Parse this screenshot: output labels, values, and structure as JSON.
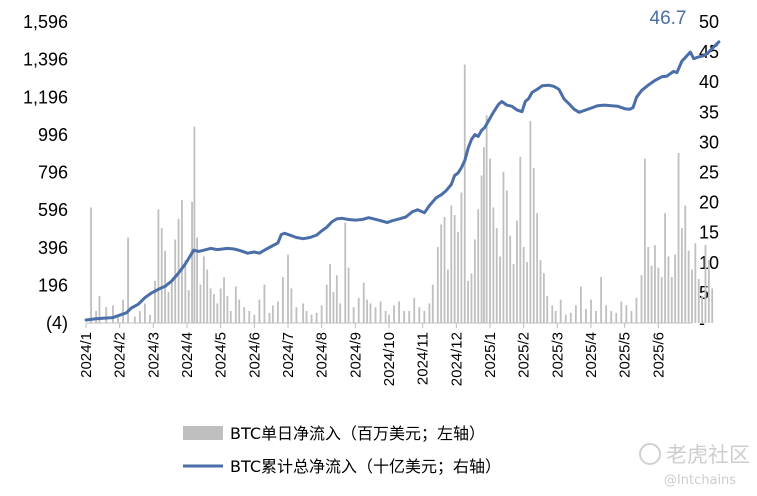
{
  "chart_data": {
    "type": "bar+line",
    "left_axis": {
      "ticks": [
        "(4)",
        "196",
        "396",
        "596",
        "796",
        "996",
        "1,196",
        "1,396",
        "1,596"
      ],
      "tick_values": [
        -4,
        196,
        396,
        596,
        796,
        996,
        1196,
        1396,
        1596
      ],
      "range": [
        -4,
        1596
      ],
      "negative_color": "#c00000"
    },
    "right_axis": {
      "ticks": [
        "-",
        "5",
        "10",
        "15",
        "20",
        "25",
        "30",
        "35",
        "40",
        "45",
        "50"
      ],
      "tick_values": [
        0,
        5,
        10,
        15,
        20,
        25,
        30,
        35,
        40,
        45,
        50
      ],
      "range": [
        0,
        50
      ]
    },
    "x_ticks": [
      "2024/1",
      "2024/2",
      "2024/3",
      "2024/4",
      "2024/5",
      "2024/6",
      "2024/7",
      "2024/8",
      "2024/9",
      "2024/10",
      "2024/11",
      "2024/12",
      "2025/1",
      "2025/2",
      "2025/3",
      "2025/4",
      "2025/5",
      "2025/6"
    ],
    "end_label": "46.7",
    "line_color": "#4a6ea8",
    "bar_color": "#bfbfbf",
    "series": [
      {
        "name": "BTC单日净流入（百万美元；左轴）",
        "type": "bar",
        "axis": "left",
        "points": [
          [
            0.15,
            610
          ],
          [
            0.3,
            60
          ],
          [
            0.4,
            140
          ],
          [
            0.6,
            80
          ],
          [
            0.8,
            90
          ],
          [
            0.95,
            40
          ],
          [
            1.1,
            120
          ],
          [
            1.25,
            450
          ],
          [
            1.45,
            30
          ],
          [
            1.6,
            60
          ],
          [
            1.75,
            100
          ],
          [
            1.9,
            40
          ],
          [
            2.05,
            220
          ],
          [
            2.15,
            600
          ],
          [
            2.25,
            500
          ],
          [
            2.35,
            380
          ],
          [
            2.45,
            160
          ],
          [
            2.55,
            210
          ],
          [
            2.65,
            440
          ],
          [
            2.75,
            550
          ],
          [
            2.85,
            650
          ],
          [
            2.95,
            330
          ],
          [
            3.05,
            170
          ],
          [
            3.15,
            640
          ],
          [
            3.22,
            1040
          ],
          [
            3.3,
            450
          ],
          [
            3.4,
            200
          ],
          [
            3.5,
            350
          ],
          [
            3.6,
            280
          ],
          [
            3.7,
            180
          ],
          [
            3.8,
            150
          ],
          [
            3.9,
            100
          ],
          [
            4.0,
            180
          ],
          [
            4.1,
            240
          ],
          [
            4.2,
            140
          ],
          [
            4.3,
            60
          ],
          [
            4.45,
            190
          ],
          [
            4.55,
            120
          ],
          [
            4.7,
            80
          ],
          [
            4.85,
            60
          ],
          [
            5.0,
            40
          ],
          [
            5.15,
            120
          ],
          [
            5.3,
            200
          ],
          [
            5.45,
            50
          ],
          [
            5.55,
            90
          ],
          [
            5.7,
            110
          ],
          [
            5.85,
            240
          ],
          [
            6.0,
            360
          ],
          [
            6.1,
            180
          ],
          [
            6.25,
            80
          ],
          [
            6.45,
            100
          ],
          [
            6.55,
            60
          ],
          [
            6.7,
            40
          ],
          [
            6.85,
            50
          ],
          [
            7.0,
            90
          ],
          [
            7.15,
            200
          ],
          [
            7.25,
            310
          ],
          [
            7.35,
            160
          ],
          [
            7.45,
            250
          ],
          [
            7.55,
            100
          ],
          [
            7.7,
            530
          ],
          [
            7.8,
            290
          ],
          [
            7.95,
            80
          ],
          [
            8.1,
            130
          ],
          [
            8.25,
            210
          ],
          [
            8.35,
            120
          ],
          [
            8.45,
            100
          ],
          [
            8.6,
            80
          ],
          [
            8.75,
            110
          ],
          [
            8.9,
            60
          ],
          [
            9.0,
            40
          ],
          [
            9.15,
            90
          ],
          [
            9.3,
            110
          ],
          [
            9.45,
            60
          ],
          [
            9.6,
            60
          ],
          [
            9.75,
            130
          ],
          [
            9.9,
            80
          ],
          [
            10.05,
            60
          ],
          [
            10.2,
            100
          ],
          [
            10.3,
            200
          ],
          [
            10.45,
            400
          ],
          [
            10.55,
            520
          ],
          [
            10.65,
            560
          ],
          [
            10.75,
            280
          ],
          [
            10.85,
            620
          ],
          [
            10.95,
            570
          ],
          [
            11.05,
            480
          ],
          [
            11.15,
            690
          ],
          [
            11.25,
            1370
          ],
          [
            11.35,
            220
          ],
          [
            11.45,
            260
          ],
          [
            11.55,
            440
          ],
          [
            11.65,
            600
          ],
          [
            11.75,
            780
          ],
          [
            11.82,
            930
          ],
          [
            11.9,
            1100
          ],
          [
            12.0,
            870
          ],
          [
            12.1,
            610
          ],
          [
            12.2,
            500
          ],
          [
            12.3,
            350
          ],
          [
            12.4,
            800
          ],
          [
            12.5,
            700
          ],
          [
            12.6,
            460
          ],
          [
            12.7,
            310
          ],
          [
            12.8,
            540
          ],
          [
            12.9,
            880
          ],
          [
            13.0,
            400
          ],
          [
            13.1,
            320
          ],
          [
            13.2,
            1070
          ],
          [
            13.3,
            820
          ],
          [
            13.4,
            580
          ],
          [
            13.5,
            330
          ],
          [
            13.6,
            260
          ],
          [
            13.7,
            140
          ],
          [
            13.85,
            90
          ],
          [
            13.95,
            60
          ],
          [
            14.1,
            120
          ],
          [
            14.25,
            40
          ],
          [
            14.4,
            50
          ],
          [
            14.55,
            90
          ],
          [
            14.7,
            190
          ],
          [
            14.85,
            70
          ],
          [
            15.0,
            120
          ],
          [
            15.15,
            60
          ],
          [
            15.3,
            240
          ],
          [
            15.45,
            90
          ],
          [
            15.6,
            60
          ],
          [
            15.75,
            50
          ],
          [
            15.9,
            110
          ],
          [
            16.05,
            90
          ],
          [
            16.2,
            60
          ],
          [
            16.35,
            130
          ],
          [
            16.5,
            250
          ],
          [
            16.6,
            870
          ],
          [
            16.7,
            400
          ],
          [
            16.8,
            300
          ],
          [
            16.9,
            410
          ],
          [
            17.0,
            290
          ],
          [
            17.1,
            240
          ],
          [
            17.2,
            580
          ],
          [
            17.3,
            350
          ],
          [
            17.4,
            240
          ],
          [
            17.5,
            360
          ],
          [
            17.6,
            900
          ],
          [
            17.7,
            500
          ],
          [
            17.8,
            620
          ],
          [
            17.9,
            380
          ],
          [
            18.0,
            280
          ],
          [
            18.1,
            420
          ],
          [
            18.2,
            230
          ],
          [
            18.3,
            140
          ],
          [
            18.4,
            410
          ],
          [
            18.5,
            330
          ],
          [
            18.6,
            180
          ]
        ]
      },
      {
        "name": "BTC累计总净流入（十亿美元；右轴）",
        "type": "line",
        "axis": "right",
        "points": [
          [
            0.0,
            0.5
          ],
          [
            0.3,
            0.7
          ],
          [
            0.5,
            0.8
          ],
          [
            0.8,
            0.9
          ],
          [
            1.0,
            1.3
          ],
          [
            1.2,
            1.7
          ],
          [
            1.35,
            2.5
          ],
          [
            1.55,
            3.1
          ],
          [
            1.75,
            4.2
          ],
          [
            1.95,
            5.0
          ],
          [
            2.15,
            5.6
          ],
          [
            2.35,
            6.1
          ],
          [
            2.55,
            7.0
          ],
          [
            2.75,
            8.3
          ],
          [
            2.95,
            9.8
          ],
          [
            3.1,
            11.2
          ],
          [
            3.2,
            12.1
          ],
          [
            3.35,
            11.9
          ],
          [
            3.5,
            12.1
          ],
          [
            3.7,
            12.4
          ],
          [
            3.9,
            12.2
          ],
          [
            4.05,
            12.3
          ],
          [
            4.2,
            12.4
          ],
          [
            4.4,
            12.3
          ],
          [
            4.6,
            12.0
          ],
          [
            4.8,
            11.6
          ],
          [
            5.0,
            11.8
          ],
          [
            5.15,
            11.6
          ],
          [
            5.3,
            12.1
          ],
          [
            5.5,
            12.7
          ],
          [
            5.7,
            13.3
          ],
          [
            5.8,
            14.7
          ],
          [
            5.9,
            14.9
          ],
          [
            6.05,
            14.6
          ],
          [
            6.25,
            14.2
          ],
          [
            6.45,
            14.0
          ],
          [
            6.65,
            14.2
          ],
          [
            6.85,
            14.6
          ],
          [
            7.0,
            15.3
          ],
          [
            7.15,
            15.9
          ],
          [
            7.3,
            16.8
          ],
          [
            7.45,
            17.3
          ],
          [
            7.6,
            17.4
          ],
          [
            7.8,
            17.2
          ],
          [
            8.0,
            17.1
          ],
          [
            8.2,
            17.2
          ],
          [
            8.4,
            17.5
          ],
          [
            8.55,
            17.3
          ],
          [
            8.75,
            17.0
          ],
          [
            8.95,
            16.7
          ],
          [
            9.1,
            17.0
          ],
          [
            9.3,
            17.3
          ],
          [
            9.5,
            17.6
          ],
          [
            9.7,
            18.5
          ],
          [
            9.85,
            18.8
          ],
          [
            10.05,
            18.3
          ],
          [
            10.2,
            19.5
          ],
          [
            10.4,
            20.8
          ],
          [
            10.55,
            21.3
          ],
          [
            10.7,
            22.0
          ],
          [
            10.85,
            23.0
          ],
          [
            10.95,
            24.5
          ],
          [
            11.05,
            24.9
          ],
          [
            11.15,
            25.8
          ],
          [
            11.25,
            27.0
          ],
          [
            11.35,
            29.0
          ],
          [
            11.45,
            30.5
          ],
          [
            11.55,
            31.3
          ],
          [
            11.65,
            31.0
          ],
          [
            11.75,
            32.0
          ],
          [
            11.85,
            32.5
          ],
          [
            11.95,
            33.5
          ],
          [
            12.1,
            35.0
          ],
          [
            12.25,
            36.3
          ],
          [
            12.35,
            36.8
          ],
          [
            12.5,
            36.2
          ],
          [
            12.65,
            36.0
          ],
          [
            12.8,
            35.4
          ],
          [
            12.95,
            35.1
          ],
          [
            13.05,
            36.8
          ],
          [
            13.15,
            37.3
          ],
          [
            13.25,
            38.3
          ],
          [
            13.4,
            38.8
          ],
          [
            13.55,
            39.4
          ],
          [
            13.75,
            39.5
          ],
          [
            13.9,
            39.3
          ],
          [
            14.05,
            38.8
          ],
          [
            14.2,
            37.2
          ],
          [
            14.35,
            36.4
          ],
          [
            14.5,
            35.5
          ],
          [
            14.65,
            35.0
          ],
          [
            14.8,
            35.3
          ],
          [
            15.0,
            35.7
          ],
          [
            15.2,
            36.1
          ],
          [
            15.4,
            36.2
          ],
          [
            15.6,
            36.1
          ],
          [
            15.8,
            36.0
          ],
          [
            16.0,
            35.6
          ],
          [
            16.15,
            35.5
          ],
          [
            16.25,
            35.8
          ],
          [
            16.35,
            37.5
          ],
          [
            16.5,
            38.6
          ],
          [
            16.7,
            39.5
          ],
          [
            16.9,
            40.3
          ],
          [
            17.1,
            40.9
          ],
          [
            17.25,
            41.0
          ],
          [
            17.45,
            41.8
          ],
          [
            17.55,
            41.6
          ],
          [
            17.7,
            43.5
          ],
          [
            17.85,
            44.4
          ],
          [
            17.95,
            45.0
          ],
          [
            18.05,
            43.9
          ],
          [
            18.2,
            44.2
          ],
          [
            18.35,
            44.4
          ],
          [
            18.5,
            45.0
          ],
          [
            18.65,
            45.9
          ],
          [
            18.8,
            46.7
          ]
        ]
      }
    ]
  },
  "watermark": {
    "brand": "老虎社区",
    "handle": "@Intchains"
  }
}
